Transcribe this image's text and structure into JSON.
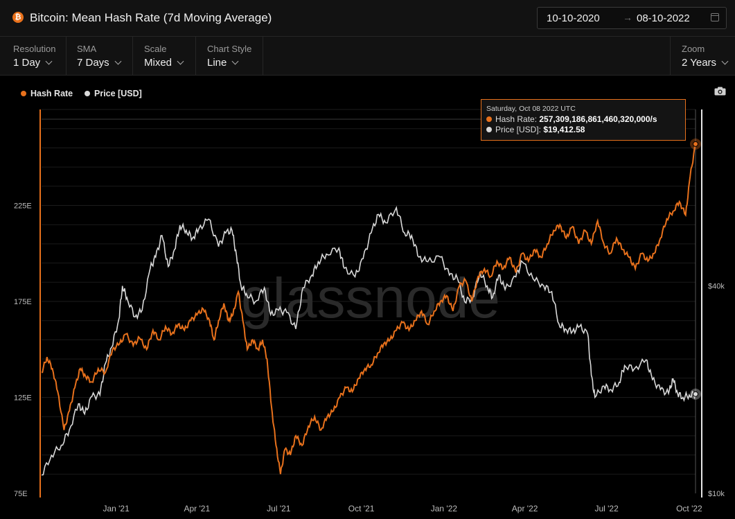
{
  "header": {
    "title": "Bitcoin: Mean Hash Rate (7d Moving Average)",
    "date_from": "10-10-2020",
    "date_to": "08-10-2022",
    "date_arrow": "→"
  },
  "controls": {
    "resolution": {
      "label": "Resolution",
      "value": "1 Day"
    },
    "sma": {
      "label": "SMA",
      "value": "7 Days"
    },
    "scale": {
      "label": "Scale",
      "value": "Mixed"
    },
    "chart_style": {
      "label": "Chart Style",
      "value": "Line"
    },
    "zoom": {
      "label": "Zoom",
      "value": "2 Years"
    }
  },
  "tooltip": {
    "date": "Saturday, Oct 08 2022 UTC",
    "hash_label": "Hash Rate:",
    "hash_value": "257,309,186,861,460,320,000/s",
    "price_label": "Price [USD]:",
    "price_value": "$19,412.58"
  },
  "watermark": "glassnode",
  "colors": {
    "hash_rate": "#e8711c",
    "price": "#d9d9d9",
    "background": "#000000",
    "grid": "#1f1f1f"
  },
  "chart_data": {
    "type": "line",
    "x_ticks": [
      "Jan '21",
      "Apr '21",
      "Jul '21",
      "Oct '21",
      "Jan '22",
      "Apr '22",
      "Jul '22",
      "Oct '22"
    ],
    "x_range": [
      "2020-10-10",
      "2022-10-08"
    ],
    "left_axis": {
      "ticks": [
        "75E",
        "125E",
        "175E",
        "225E"
      ],
      "tick_values": [
        75,
        125,
        175,
        225
      ],
      "range": [
        75,
        275
      ],
      "unit": "E/s"
    },
    "right_axis": {
      "ticks": [
        "$10k",
        "$40k"
      ],
      "tick_values": [
        10000,
        40000
      ],
      "scale": "log",
      "range": [
        10000,
        130000
      ]
    },
    "series": [
      {
        "name": "Hash Rate",
        "axis": "left",
        "points": [
          [
            "2020-10-10",
            138
          ],
          [
            "2020-10-16",
            146
          ],
          [
            "2020-10-22",
            140
          ],
          [
            "2020-10-28",
            128
          ],
          [
            "2020-11-04",
            108
          ],
          [
            "2020-11-10",
            118
          ],
          [
            "2020-11-16",
            130
          ],
          [
            "2020-11-22",
            140
          ],
          [
            "2020-11-28",
            136
          ],
          [
            "2020-12-05",
            133
          ],
          [
            "2020-12-12",
            140
          ],
          [
            "2020-12-20",
            138
          ],
          [
            "2020-12-28",
            150
          ],
          [
            "2021-01-05",
            153
          ],
          [
            "2021-01-12",
            158
          ],
          [
            "2021-01-20",
            152
          ],
          [
            "2021-01-27",
            156
          ],
          [
            "2021-02-04",
            150
          ],
          [
            "2021-02-11",
            160
          ],
          [
            "2021-02-18",
            155
          ],
          [
            "2021-02-25",
            162
          ],
          [
            "2021-03-04",
            158
          ],
          [
            "2021-03-11",
            163
          ],
          [
            "2021-03-18",
            160
          ],
          [
            "2021-03-25",
            165
          ],
          [
            "2021-04-01",
            168
          ],
          [
            "2021-04-08",
            171
          ],
          [
            "2021-04-15",
            165
          ],
          [
            "2021-04-20",
            155
          ],
          [
            "2021-04-25",
            165
          ],
          [
            "2021-05-01",
            174
          ],
          [
            "2021-05-06",
            165
          ],
          [
            "2021-05-11",
            168
          ],
          [
            "2021-05-17",
            180
          ],
          [
            "2021-05-22",
            165
          ],
          [
            "2021-05-27",
            150
          ],
          [
            "2021-06-02",
            155
          ],
          [
            "2021-06-08",
            150
          ],
          [
            "2021-06-13",
            155
          ],
          [
            "2021-06-18",
            145
          ],
          [
            "2021-06-23",
            120
          ],
          [
            "2021-06-28",
            100
          ],
          [
            "2021-07-03",
            85
          ],
          [
            "2021-07-08",
            98
          ],
          [
            "2021-07-14",
            95
          ],
          [
            "2021-07-20",
            105
          ],
          [
            "2021-07-27",
            100
          ],
          [
            "2021-08-03",
            110
          ],
          [
            "2021-08-10",
            115
          ],
          [
            "2021-08-17",
            108
          ],
          [
            "2021-08-24",
            115
          ],
          [
            "2021-08-31",
            118
          ],
          [
            "2021-09-07",
            125
          ],
          [
            "2021-09-14",
            130
          ],
          [
            "2021-09-21",
            128
          ],
          [
            "2021-09-28",
            135
          ],
          [
            "2021-10-05",
            140
          ],
          [
            "2021-10-12",
            142
          ],
          [
            "2021-10-19",
            148
          ],
          [
            "2021-10-26",
            153
          ],
          [
            "2021-11-02",
            155
          ],
          [
            "2021-11-09",
            160
          ],
          [
            "2021-11-16",
            164
          ],
          [
            "2021-11-23",
            160
          ],
          [
            "2021-11-30",
            165
          ],
          [
            "2021-12-07",
            170
          ],
          [
            "2021-12-14",
            163
          ],
          [
            "2021-12-21",
            170
          ],
          [
            "2021-12-28",
            175
          ],
          [
            "2022-01-04",
            178
          ],
          [
            "2022-01-11",
            170
          ],
          [
            "2022-01-18",
            183
          ],
          [
            "2022-01-25",
            186
          ],
          [
            "2022-02-01",
            175
          ],
          [
            "2022-02-08",
            188
          ],
          [
            "2022-02-15",
            192
          ],
          [
            "2022-02-22",
            188
          ],
          [
            "2022-03-01",
            196
          ],
          [
            "2022-03-08",
            192
          ],
          [
            "2022-03-15",
            198
          ],
          [
            "2022-03-22",
            190
          ],
          [
            "2022-03-29",
            200
          ],
          [
            "2022-04-05",
            196
          ],
          [
            "2022-04-12",
            202
          ],
          [
            "2022-04-19",
            198
          ],
          [
            "2022-04-26",
            205
          ],
          [
            "2022-05-03",
            212
          ],
          [
            "2022-05-10",
            215
          ],
          [
            "2022-05-17",
            208
          ],
          [
            "2022-05-24",
            214
          ],
          [
            "2022-05-31",
            205
          ],
          [
            "2022-06-07",
            212
          ],
          [
            "2022-06-14",
            205
          ],
          [
            "2022-06-21",
            217
          ],
          [
            "2022-06-28",
            205
          ],
          [
            "2022-07-05",
            200
          ],
          [
            "2022-07-12",
            208
          ],
          [
            "2022-07-19",
            202
          ],
          [
            "2022-07-26",
            198
          ],
          [
            "2022-08-02",
            192
          ],
          [
            "2022-08-09",
            200
          ],
          [
            "2022-08-16",
            196
          ],
          [
            "2022-08-23",
            200
          ],
          [
            "2022-08-30",
            208
          ],
          [
            "2022-09-06",
            218
          ],
          [
            "2022-09-13",
            222
          ],
          [
            "2022-09-20",
            227
          ],
          [
            "2022-09-27",
            220
          ],
          [
            "2022-10-02",
            240
          ],
          [
            "2022-10-08",
            257
          ]
        ]
      },
      {
        "name": "Price [USD]",
        "axis": "right",
        "points": [
          [
            "2020-10-10",
            11300
          ],
          [
            "2020-10-21",
            12900
          ],
          [
            "2020-11-01",
            13800
          ],
          [
            "2020-11-10",
            15300
          ],
          [
            "2020-11-20",
            18200
          ],
          [
            "2020-11-27",
            17000
          ],
          [
            "2020-12-05",
            19100
          ],
          [
            "2020-12-14",
            19300
          ],
          [
            "2020-12-20",
            23800
          ],
          [
            "2020-12-27",
            26500
          ],
          [
            "2021-01-04",
            32000
          ],
          [
            "2021-01-08",
            40000
          ],
          [
            "2021-01-13",
            37000
          ],
          [
            "2021-01-22",
            32500
          ],
          [
            "2021-01-30",
            34000
          ],
          [
            "2021-02-08",
            45000
          ],
          [
            "2021-02-14",
            48500
          ],
          [
            "2021-02-21",
            56000
          ],
          [
            "2021-02-28",
            45500
          ],
          [
            "2021-03-07",
            51000
          ],
          [
            "2021-03-13",
            60000
          ],
          [
            "2021-03-20",
            58000
          ],
          [
            "2021-03-27",
            55000
          ],
          [
            "2021-04-03",
            58500
          ],
          [
            "2021-04-14",
            62500
          ],
          [
            "2021-04-25",
            52000
          ],
          [
            "2021-05-03",
            57000
          ],
          [
            "2021-05-10",
            58000
          ],
          [
            "2021-05-15",
            49000
          ],
          [
            "2021-05-20",
            40000
          ],
          [
            "2021-05-26",
            38000
          ],
          [
            "2021-06-05",
            36000
          ],
          [
            "2021-06-15",
            39500
          ],
          [
            "2021-06-22",
            33000
          ],
          [
            "2021-07-01",
            34000
          ],
          [
            "2021-07-10",
            33500
          ],
          [
            "2021-07-20",
            30000
          ],
          [
            "2021-07-28",
            39500
          ],
          [
            "2021-08-07",
            43000
          ],
          [
            "2021-08-14",
            47000
          ],
          [
            "2021-08-23",
            49500
          ],
          [
            "2021-09-06",
            51500
          ],
          [
            "2021-09-12",
            45000
          ],
          [
            "2021-09-24",
            42500
          ],
          [
            "2021-10-03",
            48000
          ],
          [
            "2021-10-12",
            57000
          ],
          [
            "2021-10-20",
            64500
          ],
          [
            "2021-10-28",
            61000
          ],
          [
            "2021-11-09",
            67500
          ],
          [
            "2021-11-18",
            57000
          ],
          [
            "2021-11-26",
            56000
          ],
          [
            "2021-12-04",
            48500
          ],
          [
            "2021-12-14",
            47000
          ],
          [
            "2021-12-28",
            48500
          ],
          [
            "2022-01-07",
            43000
          ],
          [
            "2022-01-16",
            42000
          ],
          [
            "2022-01-24",
            36000
          ],
          [
            "2022-02-02",
            37000
          ],
          [
            "2022-02-10",
            44000
          ],
          [
            "2022-02-18",
            40000
          ],
          [
            "2022-02-24",
            37000
          ],
          [
            "2022-03-03",
            43000
          ],
          [
            "2022-03-10",
            39000
          ],
          [
            "2022-03-22",
            42500
          ],
          [
            "2022-03-29",
            47000
          ],
          [
            "2022-04-10",
            42000
          ],
          [
            "2022-04-22",
            40000
          ],
          [
            "2022-05-01",
            38500
          ],
          [
            "2022-05-09",
            31000
          ],
          [
            "2022-05-16",
            30000
          ],
          [
            "2022-05-24",
            29500
          ],
          [
            "2022-06-01",
            30500
          ],
          [
            "2022-06-10",
            29000
          ],
          [
            "2022-06-14",
            22000
          ],
          [
            "2022-06-18",
            19000
          ],
          [
            "2022-06-28",
            20500
          ],
          [
            "2022-07-06",
            20000
          ],
          [
            "2022-07-15",
            21000
          ],
          [
            "2022-07-21",
            23500
          ],
          [
            "2022-08-01",
            23000
          ],
          [
            "2022-08-14",
            24400
          ],
          [
            "2022-08-21",
            21400
          ],
          [
            "2022-08-30",
            20000
          ],
          [
            "2022-09-08",
            19500
          ],
          [
            "2022-09-13",
            21500
          ],
          [
            "2022-09-18",
            19500
          ],
          [
            "2022-09-24",
            19000
          ],
          [
            "2022-10-01",
            19300
          ],
          [
            "2022-10-08",
            19413
          ]
        ]
      }
    ]
  }
}
